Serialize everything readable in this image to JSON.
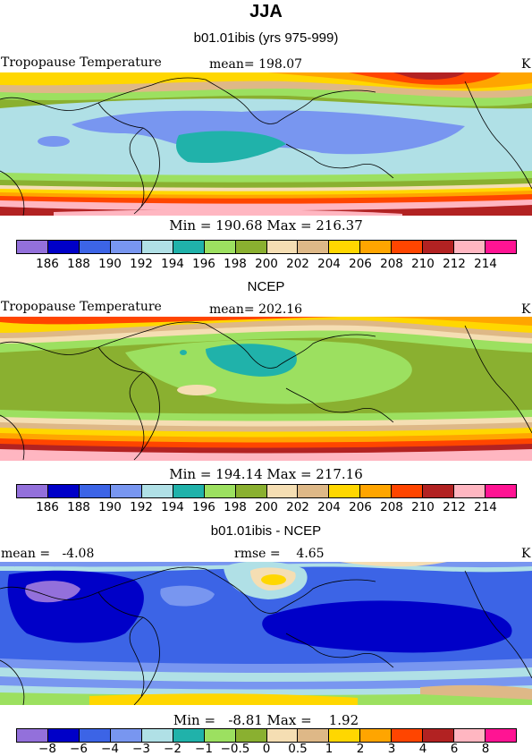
{
  "title": "JJA",
  "colors": [
    "#9370db",
    "#0000c8",
    "#3c64e6",
    "#7896f0",
    "#b0e0e6",
    "#20b2aa",
    "#9ce060",
    "#8ab030",
    "#f5deb3",
    "#deb887",
    "#ffd700",
    "#ffa500",
    "#ff4500",
    "#b22222",
    "#ffb6c1",
    "#ff1493"
  ],
  "panel1": {
    "title": "b01.01ibis (yrs 975-999)",
    "left_label": "Tropopause Temperature",
    "mean_label": "mean= 198.07",
    "units": "K",
    "minmax": "Min = 190.68 Max = 216.37",
    "ticks": [
      "186",
      "188",
      "190",
      "192",
      "194",
      "196",
      "198",
      "200",
      "202",
      "204",
      "206",
      "208",
      "210",
      "212",
      "214"
    ]
  },
  "panel2": {
    "title": "NCEP",
    "left_label": "Tropopause Temperature",
    "mean_label": "mean= 202.16",
    "units": "K",
    "minmax": "Min = 194.14 Max = 217.16",
    "ticks": [
      "186",
      "188",
      "190",
      "192",
      "194",
      "196",
      "198",
      "200",
      "202",
      "204",
      "206",
      "208",
      "210",
      "212",
      "214"
    ]
  },
  "panel3": {
    "title": "b01.01ibis - NCEP",
    "left_label": "mean =   -4.08",
    "mean_label": "rmse =    4.65",
    "units": "K",
    "minmax": "Min =   -8.81 Max =    1.92",
    "ticks": [
      "−8",
      "−6",
      "−4",
      "−3",
      "−2",
      "−1",
      "−0.5",
      "0",
      "0.5",
      "1",
      "2",
      "3",
      "4",
      "6",
      "8"
    ]
  }
}
